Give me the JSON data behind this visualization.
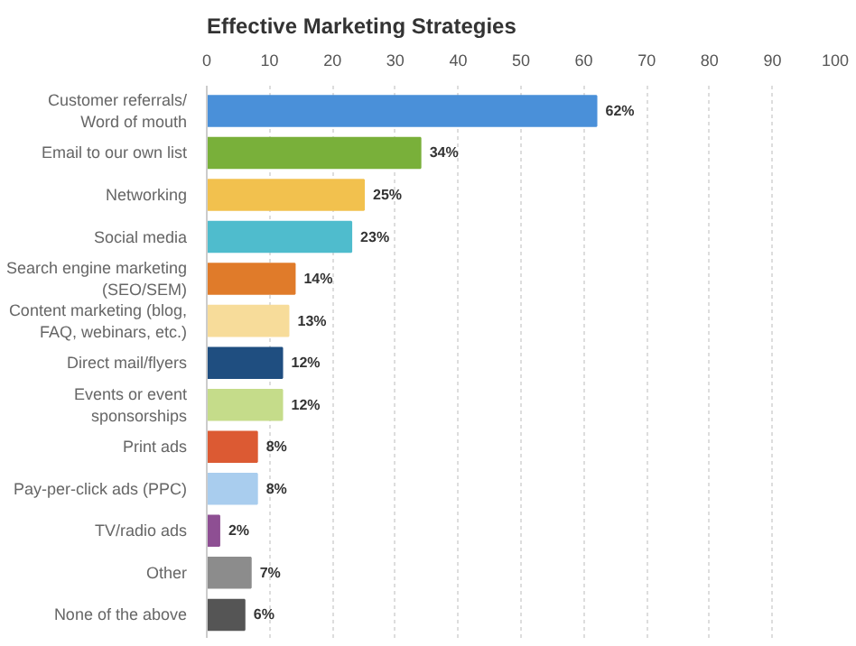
{
  "chart_data": {
    "type": "bar",
    "orientation": "horizontal",
    "title": "Effective Marketing Strategies",
    "categories": [
      "Customer referrals/\nWord of mouth",
      "Email to our own list",
      "Networking",
      "Social media",
      "Search engine marketing\n(SEO/SEM)",
      "Content marketing (blog,\nFAQ, webinars, etc.)",
      "Direct mail/flyers",
      "Events or event\nsponsorships",
      "Print ads",
      "Pay-per-click ads (PPC)",
      "TV/radio ads",
      "Other",
      "None of the above"
    ],
    "values": [
      62,
      34,
      25,
      23,
      14,
      13,
      12,
      12,
      8,
      8,
      2,
      7,
      6
    ],
    "value_labels": [
      "62%",
      "34%",
      "25%",
      "23%",
      "14%",
      "13%",
      "12%",
      "12%",
      "8%",
      "8%",
      "2%",
      "7%",
      "6%"
    ],
    "colors": [
      "#4a90d9",
      "#79b03a",
      "#f2c14e",
      "#4fbccd",
      "#e07b2a",
      "#f7dc9a",
      "#1f4e80",
      "#c5dc8a",
      "#dc5a33",
      "#a9cdee",
      "#8e4f93",
      "#8c8c8c",
      "#555555"
    ],
    "xlim": [
      0,
      100
    ],
    "xticks": [
      0,
      10,
      20,
      30,
      40,
      50,
      60,
      70,
      80,
      90,
      100
    ],
    "grid": "x"
  }
}
